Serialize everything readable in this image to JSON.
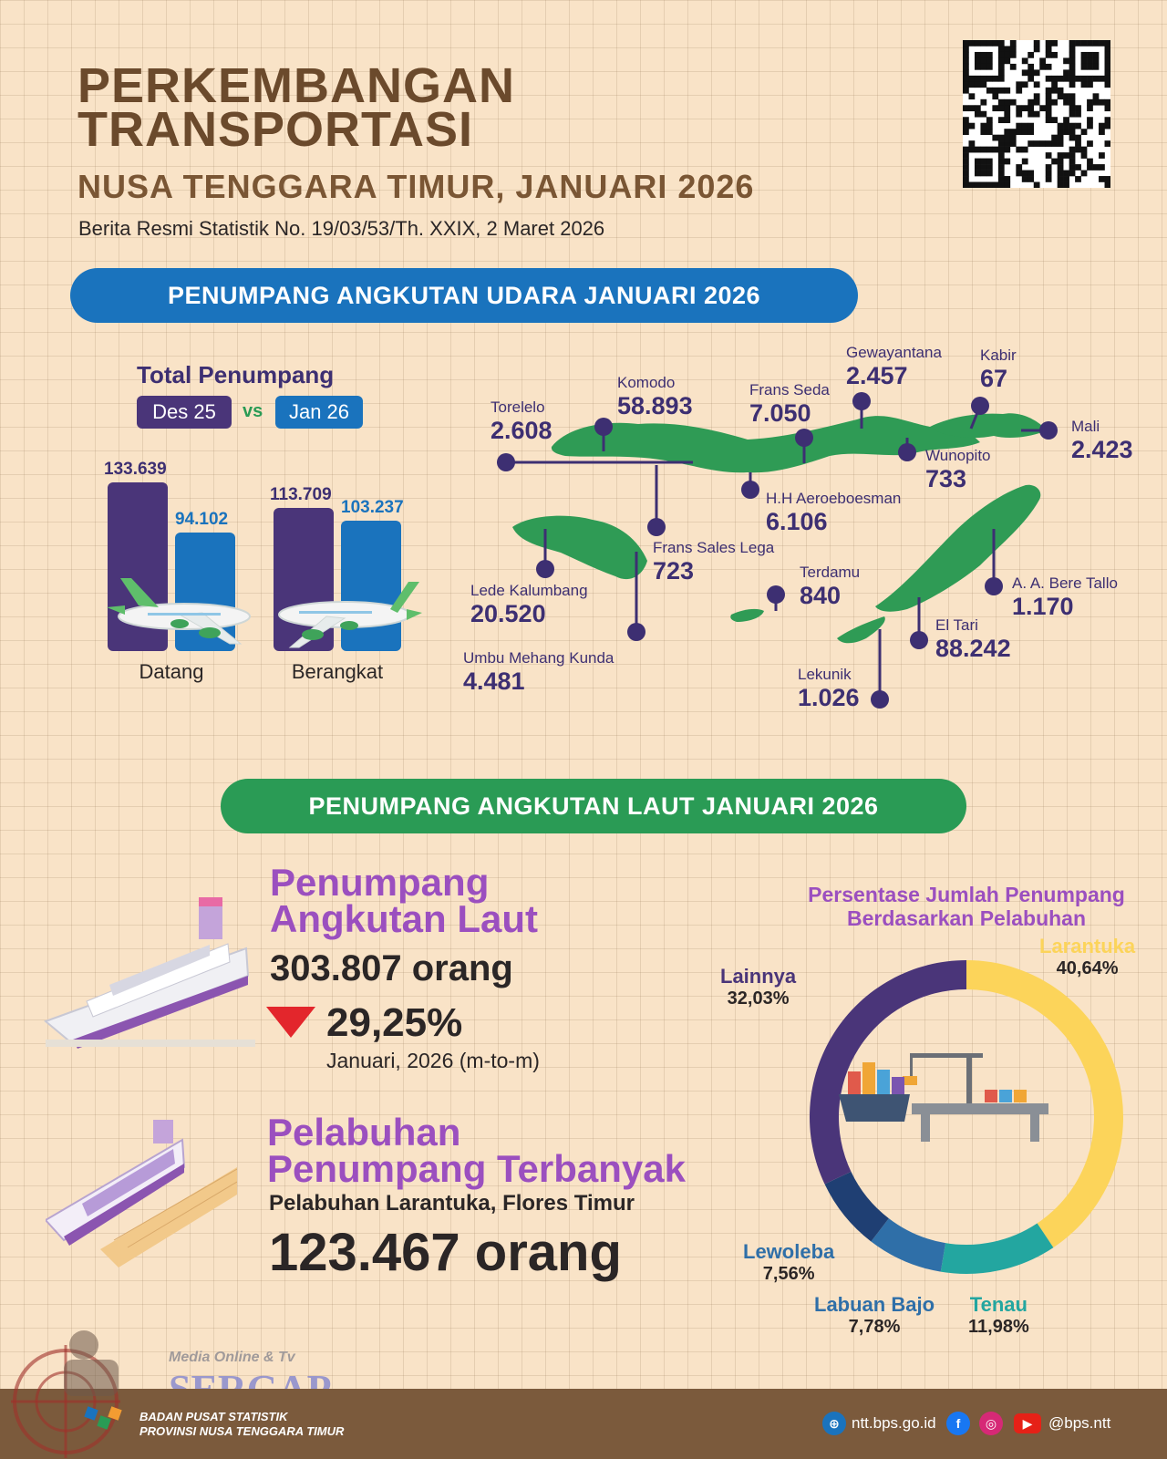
{
  "header": {
    "title_line1": "PERKEMBANGAN",
    "title_line2": "TRANSPORTASI",
    "subtitle": "NUSA TENGGARA TIMUR, JANUARI 2026",
    "release": "Berita Resmi Statistik No. 19/03/53/Th. XXIX, 2 Maret 2026"
  },
  "air": {
    "banner": "PENUMPANG ANGKUTAN UDARA JANUARI 2026",
    "total_label": "Total Penumpang",
    "period_a": "Des 25",
    "vs": "vs",
    "period_b": "Jan 26",
    "bars": [
      {
        "category": "Datang",
        "des": "133.639",
        "jan": "94.102",
        "des_value": 133639,
        "jan_value": 94102
      },
      {
        "category": "Berangkat",
        "des": "113.709",
        "jan": "103.237",
        "des_value": 113709,
        "jan_value": 103237
      }
    ],
    "airports": [
      {
        "name": "Torelelo",
        "value": "2.608"
      },
      {
        "name": "Komodo",
        "value": "58.893"
      },
      {
        "name": "Frans Seda",
        "value": "7.050"
      },
      {
        "name": "Gewayantana",
        "value": "2.457"
      },
      {
        "name": "Kabir",
        "value": "67"
      },
      {
        "name": "Mali",
        "value": "2.423"
      },
      {
        "name": "Wunopito",
        "value": "733"
      },
      {
        "name": "H.H Aeroeboesman",
        "value": "6.106"
      },
      {
        "name": "Frans Sales Lega",
        "value": "723"
      },
      {
        "name": "Lede Kalumbang",
        "value": "20.520"
      },
      {
        "name": "Terdamu",
        "value": "840"
      },
      {
        "name": "A. A. Bere Tallo",
        "value": "1.170"
      },
      {
        "name": "El Tari",
        "value": "88.242"
      },
      {
        "name": "Umbu Mehang Kunda",
        "value": "4.481"
      },
      {
        "name": "Lekunik",
        "value": "1.026"
      }
    ]
  },
  "sea": {
    "banner": "PENUMPANG ANGKUTAN LAUT JANUARI 2026",
    "heading_line1": "Penumpang",
    "heading_line2": "Angkutan Laut",
    "total": "303.807 orang",
    "change": "29,25%",
    "change_period": "Januari, 2026 (m-to-m)",
    "port_heading_line1": "Pelabuhan",
    "port_heading_line2": "Penumpang Terbanyak",
    "port_name": "Pelabuhan Larantuka, Flores Timur",
    "port_total": "123.467 orang",
    "donut_title_line1": "Persentase Jumlah Penumpang",
    "donut_title_line2": "Berdasarkan Pelabuhan",
    "shares": [
      {
        "name": "Larantuka",
        "label": "40,64%",
        "value": 40.64,
        "color": "#fcd45a"
      },
      {
        "name": "Tenau",
        "label": "11,98%",
        "value": 11.98,
        "color": "#23a6a0"
      },
      {
        "name": "Labuan Bajo",
        "label": "7,78%",
        "value": 7.78,
        "color": "#2f6fa8"
      },
      {
        "name": "Lewoleba",
        "label": "7,56%",
        "value": 7.56,
        "color": "#1f3f73"
      },
      {
        "name": "Lainnya",
        "label": "32,03%",
        "value": 32.03,
        "color": "#4a3579"
      }
    ]
  },
  "colors": {
    "des": "#4a3579",
    "jan": "#1a73bd",
    "air_banner": "#1a73bd",
    "sea_banner": "#2a9b55",
    "island": "#2f9b55"
  },
  "footer": {
    "org_line1": "BADAN PUSAT STATISTIK",
    "org_line2": "PROVINSI NUSA TENGGARA TIMUR",
    "website": "ntt.bps.go.id",
    "social": "@bps.ntt",
    "watermark_small": "Media Online & Tv",
    "watermark_big": "SERGAP"
  }
}
